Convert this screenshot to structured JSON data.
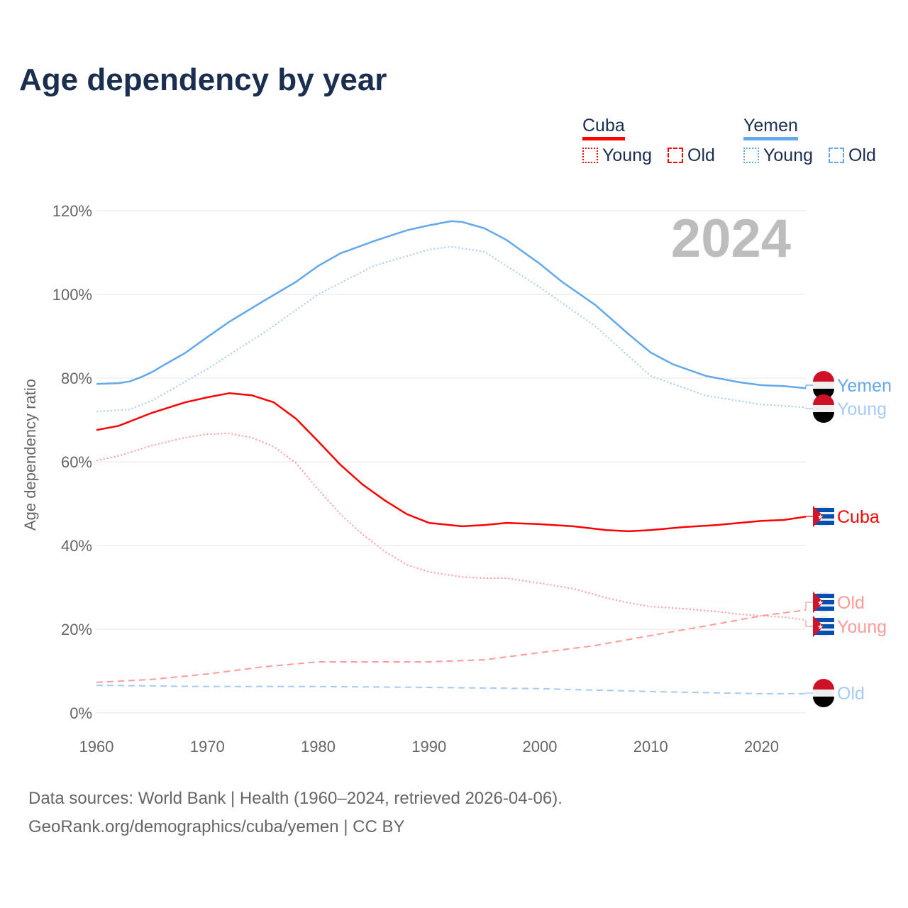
{
  "title": "Age dependency by year",
  "legend": {
    "cuba": "Cuba",
    "yemen": "Yemen",
    "young": "Young",
    "old": "Old"
  },
  "colors": {
    "cuba": "#ff0000",
    "cuba_light": "#ff9a9a",
    "yemen": "#62a8ea",
    "yemen_light": "#a6cbf1"
  },
  "source_line1": "Data sources: World Bank | Health (1960–2024, retrieved 2026-04-06).",
  "source_line2": "GeoRank.org/demographics/cuba/yemen | CC BY",
  "chart_data": {
    "type": "line",
    "title": "Age dependency by year",
    "ylabel": "Age dependency ratio",
    "xlabel": "",
    "year_label": "2024",
    "xlim": [
      1960,
      2024
    ],
    "ylim": [
      0,
      120
    ],
    "x_ticks": [
      1960,
      1970,
      1980,
      1990,
      2000,
      2010,
      2020
    ],
    "y_ticks": [
      "0%",
      "20%",
      "40%",
      "60%",
      "80%",
      "100%",
      "120%"
    ],
    "series": [
      {
        "name": "Yemen",
        "label": "Yemen",
        "style": "solid",
        "color": "#62a8ea",
        "points": [
          [
            1960,
            78.6
          ],
          [
            1962,
            78.8
          ],
          [
            1963,
            79.2
          ],
          [
            1964,
            80.2
          ],
          [
            1965,
            81.4
          ],
          [
            1966,
            83
          ],
          [
            1968,
            86
          ],
          [
            1970,
            89.8
          ],
          [
            1972,
            93.5
          ],
          [
            1975,
            98.3
          ],
          [
            1978,
            103
          ],
          [
            1980,
            106.8
          ],
          [
            1982,
            109.8
          ],
          [
            1985,
            112.7
          ],
          [
            1988,
            115.3
          ],
          [
            1990,
            116.5
          ],
          [
            1992,
            117.5
          ],
          [
            1993,
            117.3
          ],
          [
            1995,
            115.8
          ],
          [
            1997,
            113
          ],
          [
            2000,
            107.3
          ],
          [
            2002,
            103
          ],
          [
            2005,
            97.5
          ],
          [
            2008,
            90.5
          ],
          [
            2010,
            86.1
          ],
          [
            2012,
            83.3
          ],
          [
            2015,
            80.5
          ],
          [
            2018,
            79
          ],
          [
            2020,
            78.3
          ],
          [
            2022,
            78.1
          ],
          [
            2024,
            77.6
          ]
        ]
      },
      {
        "name": "Yemen Young",
        "label": "Young",
        "style": "dotted",
        "color": "#a6cbf1",
        "points": [
          [
            1960,
            72
          ],
          [
            1963,
            72.5
          ],
          [
            1965,
            74.6
          ],
          [
            1970,
            82.2
          ],
          [
            1975,
            90.7
          ],
          [
            1980,
            100
          ],
          [
            1985,
            106.8
          ],
          [
            1990,
            110.7
          ],
          [
            1992,
            111.4
          ],
          [
            1995,
            110.2
          ],
          [
            2000,
            101.7
          ],
          [
            2005,
            92.4
          ],
          [
            2010,
            80.5
          ],
          [
            2015,
            75.8
          ],
          [
            2020,
            73.7
          ],
          [
            2024,
            73
          ]
        ]
      },
      {
        "name": "Yemen Old",
        "label": "Old",
        "style": "dashed",
        "color": "#a6cbf1",
        "points": [
          [
            1960,
            6.6
          ],
          [
            1970,
            6.3
          ],
          [
            1980,
            6.3
          ],
          [
            1990,
            6.1
          ],
          [
            2000,
            5.8
          ],
          [
            2010,
            5.1
          ],
          [
            2020,
            4.6
          ],
          [
            2024,
            4.6
          ]
        ]
      },
      {
        "name": "Cuba",
        "label": "Cuba",
        "style": "solid",
        "color": "#ff0000",
        "points": [
          [
            1960,
            67.6
          ],
          [
            1962,
            68.6
          ],
          [
            1965,
            71.7
          ],
          [
            1968,
            74.2
          ],
          [
            1970,
            75.4
          ],
          [
            1972,
            76.4
          ],
          [
            1974,
            75.9
          ],
          [
            1976,
            74.2
          ],
          [
            1978,
            70.3
          ],
          [
            1980,
            64.9
          ],
          [
            1982,
            59.3
          ],
          [
            1984,
            54.6
          ],
          [
            1986,
            50.8
          ],
          [
            1988,
            47.5
          ],
          [
            1990,
            45.4
          ],
          [
            1993,
            44.6
          ],
          [
            1995,
            44.9
          ],
          [
            1997,
            45.4
          ],
          [
            2000,
            45.1
          ],
          [
            2003,
            44.6
          ],
          [
            2006,
            43.7
          ],
          [
            2008,
            43.4
          ],
          [
            2010,
            43.7
          ],
          [
            2013,
            44.4
          ],
          [
            2016,
            44.9
          ],
          [
            2018,
            45.4
          ],
          [
            2020,
            45.9
          ],
          [
            2022,
            46.1
          ],
          [
            2024,
            46.9
          ]
        ]
      },
      {
        "name": "Cuba Young",
        "label": "Young",
        "style": "dotted",
        "color": "#ff9a9a",
        "points": [
          [
            1960,
            60.3
          ],
          [
            1962,
            61.4
          ],
          [
            1965,
            63.9
          ],
          [
            1968,
            65.8
          ],
          [
            1970,
            66.6
          ],
          [
            1972,
            66.8
          ],
          [
            1974,
            65.8
          ],
          [
            1976,
            63.6
          ],
          [
            1978,
            59.7
          ],
          [
            1980,
            53.4
          ],
          [
            1982,
            47.5
          ],
          [
            1984,
            42.7
          ],
          [
            1986,
            38.6
          ],
          [
            1988,
            35.4
          ],
          [
            1990,
            33.7
          ],
          [
            1993,
            32.5
          ],
          [
            1995,
            32.2
          ],
          [
            1997,
            32.2
          ],
          [
            2000,
            31
          ],
          [
            2003,
            29.7
          ],
          [
            2006,
            27.5
          ],
          [
            2008,
            26.3
          ],
          [
            2010,
            25.4
          ],
          [
            2013,
            24.9
          ],
          [
            2016,
            24.2
          ],
          [
            2018,
            23.6
          ],
          [
            2020,
            23.2
          ],
          [
            2022,
            22.9
          ],
          [
            2024,
            22.2
          ]
        ]
      },
      {
        "name": "Cuba Old",
        "label": "Old",
        "style": "dashed",
        "color": "#ff9a9a",
        "points": [
          [
            1960,
            7.3
          ],
          [
            1965,
            8
          ],
          [
            1970,
            9.3
          ],
          [
            1975,
            11
          ],
          [
            1980,
            12.2
          ],
          [
            1985,
            12.2
          ],
          [
            1990,
            12.2
          ],
          [
            1995,
            12.7
          ],
          [
            2000,
            14.4
          ],
          [
            2005,
            16.1
          ],
          [
            2010,
            18.5
          ],
          [
            2015,
            20.8
          ],
          [
            2020,
            23.2
          ],
          [
            2024,
            24.6
          ]
        ]
      }
    ]
  }
}
